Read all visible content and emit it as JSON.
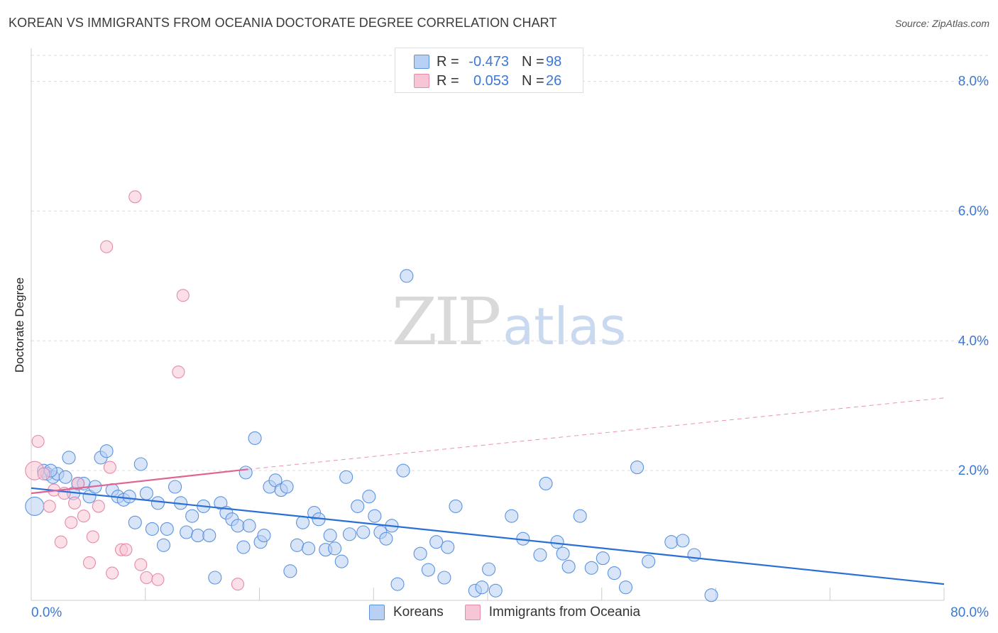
{
  "chart_data": {
    "type": "scatter",
    "title": "KOREAN VS IMMIGRANTS FROM OCEANIA DOCTORATE DEGREE CORRELATION CHART",
    "source": "Source: ZipAtlas.com",
    "xlabel": "",
    "ylabel": "Doctorate Degree",
    "xlim": [
      0,
      80
    ],
    "ylim": [
      0,
      8.4
    ],
    "x_tick_labels": [
      "0.0%",
      "80.0%"
    ],
    "y_ticks": [
      2,
      4,
      6,
      8
    ],
    "y_tick_labels": [
      "2.0%",
      "4.0%",
      "6.0%",
      "8.0%"
    ],
    "grid": true,
    "legend_position": "top-center",
    "colors": {
      "koreans": "#5b93e0",
      "koreans_fill": "#b8d0f4",
      "koreans_line": "#2a6fd6",
      "oceania": "#e68aa8",
      "oceania_fill": "#f7c6d6",
      "oceania_line": "#e0648f",
      "axis_text": "#3b78d8"
    },
    "series": [
      {
        "name": "Koreans",
        "R": "-0.473",
        "N": "98",
        "trend": {
          "x": [
            0,
            80
          ],
          "y": [
            1.73,
            0.25
          ]
        },
        "points": [
          [
            0.3,
            1.45
          ],
          [
            1.1,
            2.0
          ],
          [
            1.4,
            1.95
          ],
          [
            1.9,
            1.9
          ],
          [
            2.3,
            1.95
          ],
          [
            3.0,
            1.9
          ],
          [
            3.3,
            2.2
          ],
          [
            3.7,
            1.65
          ],
          [
            4.1,
            1.8
          ],
          [
            4.6,
            1.8
          ],
          [
            5.1,
            1.6
          ],
          [
            5.6,
            1.75
          ],
          [
            6.1,
            2.2
          ],
          [
            6.6,
            2.3
          ],
          [
            7.1,
            1.7
          ],
          [
            7.6,
            1.6
          ],
          [
            8.1,
            1.55
          ],
          [
            8.6,
            1.6
          ],
          [
            9.1,
            1.2
          ],
          [
            9.6,
            2.1
          ],
          [
            10.1,
            1.65
          ],
          [
            10.6,
            1.1
          ],
          [
            11.1,
            1.5
          ],
          [
            11.6,
            0.85
          ],
          [
            11.9,
            1.1
          ],
          [
            12.6,
            1.75
          ],
          [
            13.1,
            1.5
          ],
          [
            13.6,
            1.05
          ],
          [
            14.1,
            1.3
          ],
          [
            14.6,
            1.0
          ],
          [
            15.1,
            1.45
          ],
          [
            15.6,
            1.0
          ],
          [
            16.1,
            0.35
          ],
          [
            16.6,
            1.5
          ],
          [
            17.1,
            1.35
          ],
          [
            17.6,
            1.25
          ],
          [
            18.1,
            1.15
          ],
          [
            18.6,
            0.82
          ],
          [
            18.8,
            1.97
          ],
          [
            19.1,
            1.15
          ],
          [
            19.6,
            2.5
          ],
          [
            20.1,
            0.9
          ],
          [
            20.4,
            1.0
          ],
          [
            20.9,
            1.75
          ],
          [
            21.4,
            1.85
          ],
          [
            21.9,
            1.7
          ],
          [
            22.4,
            1.75
          ],
          [
            22.7,
            0.45
          ],
          [
            23.3,
            0.85
          ],
          [
            23.8,
            1.2
          ],
          [
            24.3,
            0.8
          ],
          [
            24.8,
            1.35
          ],
          [
            25.2,
            1.25
          ],
          [
            25.8,
            0.78
          ],
          [
            26.2,
            1.0
          ],
          [
            26.6,
            0.8
          ],
          [
            27.2,
            0.6
          ],
          [
            27.6,
            1.9
          ],
          [
            27.9,
            1.02
          ],
          [
            28.6,
            1.45
          ],
          [
            29.1,
            1.05
          ],
          [
            29.6,
            1.6
          ],
          [
            30.1,
            1.3
          ],
          [
            30.6,
            1.05
          ],
          [
            31.1,
            0.95
          ],
          [
            31.6,
            1.15
          ],
          [
            32.1,
            0.25
          ],
          [
            32.6,
            2.0
          ],
          [
            32.9,
            5.0
          ],
          [
            34.1,
            0.72
          ],
          [
            34.8,
            0.47
          ],
          [
            35.5,
            0.9
          ],
          [
            36.2,
            0.35
          ],
          [
            36.5,
            0.82
          ],
          [
            37.2,
            1.45
          ],
          [
            38.9,
            0.15
          ],
          [
            39.5,
            0.2
          ],
          [
            40.1,
            0.48
          ],
          [
            40.7,
            0.15
          ],
          [
            42.1,
            1.3
          ],
          [
            43.1,
            0.95
          ],
          [
            44.6,
            0.7
          ],
          [
            45.1,
            1.8
          ],
          [
            46.1,
            0.9
          ],
          [
            46.6,
            0.72
          ],
          [
            47.1,
            0.52
          ],
          [
            48.1,
            1.3
          ],
          [
            49.1,
            0.5
          ],
          [
            50.1,
            0.65
          ],
          [
            51.1,
            0.42
          ],
          [
            52.1,
            0.2
          ],
          [
            53.1,
            2.05
          ],
          [
            54.1,
            0.6
          ],
          [
            56.1,
            0.9
          ],
          [
            57.1,
            0.92
          ],
          [
            58.1,
            0.7
          ],
          [
            59.6,
            0.08
          ],
          [
            1.7,
            2.0
          ]
        ]
      },
      {
        "name": "Immigrants from Oceania",
        "R": "0.053",
        "N": "26",
        "trend": {
          "x": [
            0,
            19
          ],
          "y": [
            1.65,
            2.02
          ]
        },
        "trend_extension": {
          "x": [
            19,
            80
          ],
          "y": [
            2.02,
            3.12
          ]
        },
        "points": [
          [
            0.3,
            2.0
          ],
          [
            0.6,
            2.45
          ],
          [
            1.1,
            1.95
          ],
          [
            1.6,
            1.45
          ],
          [
            2.0,
            1.7
          ],
          [
            2.6,
            0.9
          ],
          [
            2.9,
            1.65
          ],
          [
            3.5,
            1.2
          ],
          [
            3.8,
            1.5
          ],
          [
            4.1,
            1.8
          ],
          [
            4.6,
            1.3
          ],
          [
            5.1,
            0.58
          ],
          [
            5.4,
            0.98
          ],
          [
            5.9,
            1.45
          ],
          [
            6.6,
            5.45
          ],
          [
            6.9,
            2.05
          ],
          [
            7.1,
            0.42
          ],
          [
            7.9,
            0.78
          ],
          [
            8.3,
            0.78
          ],
          [
            9.1,
            6.22
          ],
          [
            9.6,
            0.55
          ],
          [
            10.1,
            0.35
          ],
          [
            11.1,
            0.32
          ],
          [
            12.9,
            3.52
          ],
          [
            13.3,
            4.7
          ],
          [
            18.1,
            0.25
          ]
        ]
      }
    ]
  },
  "legend": {
    "r_label": "R =",
    "n_label": "N =",
    "rows": [
      {
        "r": "-0.473",
        "n": "98"
      },
      {
        "r": "0.053",
        "n": "26"
      }
    ]
  },
  "bottom_legend": [
    "Koreans",
    "Immigrants from Oceania"
  ],
  "watermark": {
    "zip": "ZIP",
    "atlas": "atlas"
  }
}
